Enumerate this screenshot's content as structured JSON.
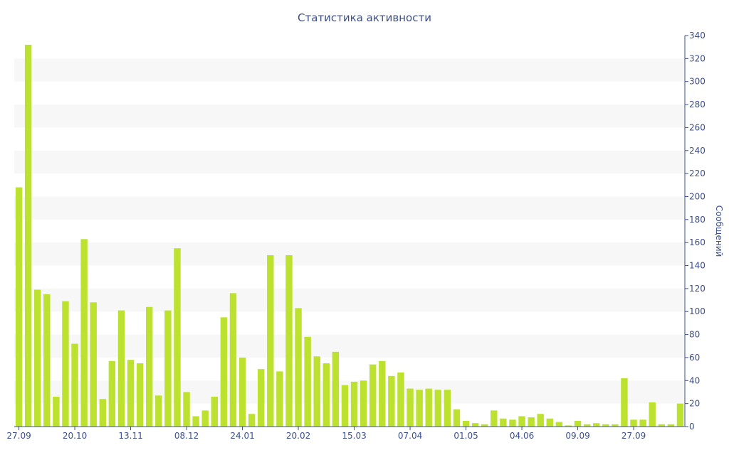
{
  "chart_data": {
    "type": "bar",
    "title": "Статистика активности",
    "ylabel": "Сообщений",
    "xlabel": "",
    "ylim": [
      0,
      340
    ],
    "y_ticks": [
      0,
      20,
      40,
      60,
      80,
      100,
      120,
      140,
      160,
      180,
      200,
      220,
      240,
      260,
      280,
      300,
      320,
      340
    ],
    "y_axis_position": "right",
    "grid": "alternating horizontal bands",
    "x_tick_labels": [
      {
        "label": "27.09",
        "index": 0
      },
      {
        "label": "20.10",
        "index": 6
      },
      {
        "label": "13.11",
        "index": 12
      },
      {
        "label": "08.12",
        "index": 18
      },
      {
        "label": "24.01",
        "index": 24
      },
      {
        "label": "20.02",
        "index": 30
      },
      {
        "label": "15.03",
        "index": 36
      },
      {
        "label": "07.04",
        "index": 42
      },
      {
        "label": "01.05",
        "index": 48
      },
      {
        "label": "04.06",
        "index": 54
      },
      {
        "label": "09.09",
        "index": 60
      },
      {
        "label": "27.09",
        "index": 66
      }
    ],
    "values": [
      208,
      332,
      119,
      115,
      26,
      109,
      72,
      163,
      108,
      24,
      57,
      101,
      58,
      55,
      104,
      27,
      101,
      155,
      30,
      9,
      14,
      26,
      95,
      116,
      60,
      11,
      50,
      149,
      48,
      149,
      103,
      78,
      61,
      55,
      65,
      36,
      39,
      40,
      54,
      57,
      44,
      47,
      33,
      32,
      33,
      32,
      32,
      15,
      5,
      3,
      2,
      14,
      7,
      6,
      9,
      8,
      11,
      7,
      4,
      1,
      5,
      2,
      3,
      2,
      2,
      42,
      6,
      6,
      21,
      2,
      2,
      20
    ],
    "bar_color": "#bce12f"
  }
}
